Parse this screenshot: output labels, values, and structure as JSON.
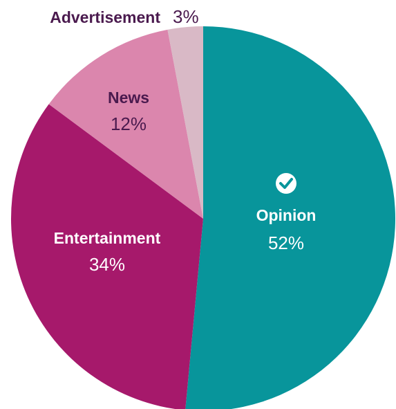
{
  "chart_data": {
    "type": "pie",
    "title": "",
    "start_angle_deg": 0,
    "direction": "clockwise",
    "slices": [
      {
        "label": "Opinion",
        "value": 52,
        "display": "52%",
        "color": "#08959b",
        "label_color": "#ffffff",
        "icon": "check-circle-icon"
      },
      {
        "label": "Entertainment",
        "value": 34,
        "display": "34%",
        "color": "#a6196b",
        "label_color": "#ffffff"
      },
      {
        "label": "News",
        "value": 12,
        "display": "12%",
        "color": "#db86ad",
        "label_color": "#4a1a4e"
      },
      {
        "label": "Advertisement",
        "value": 3,
        "display": "3%",
        "color": "#d9b9c6",
        "label_color": "#4a1a4e"
      }
    ]
  }
}
